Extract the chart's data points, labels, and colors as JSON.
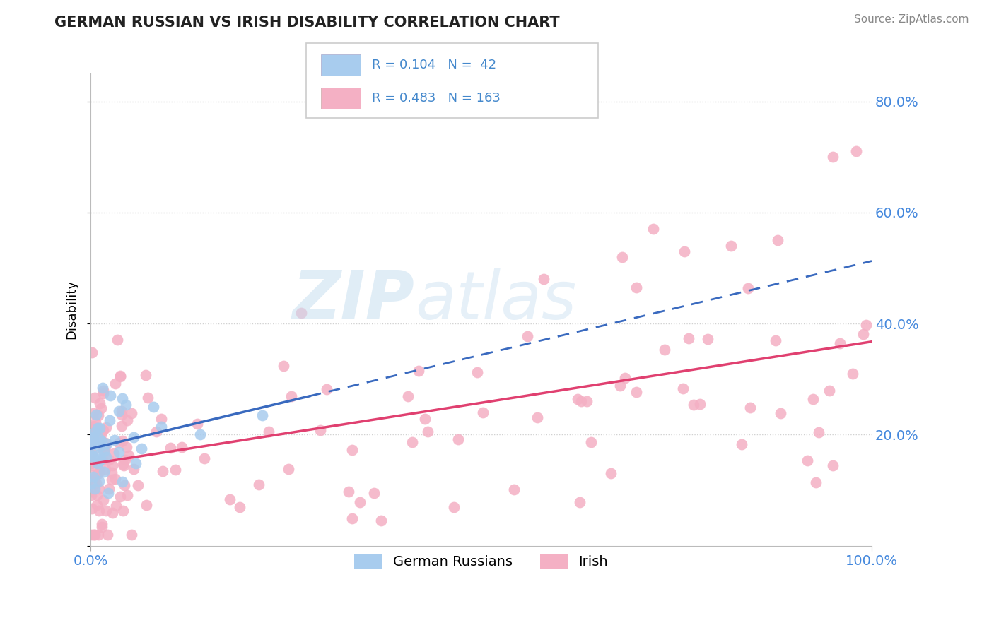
{
  "title": "GERMAN RUSSIAN VS IRISH DISABILITY CORRELATION CHART",
  "source_text": "Source: ZipAtlas.com",
  "ylabel": "Disability",
  "series": [
    {
      "label": "German Russians",
      "R": 0.104,
      "N": 42,
      "dot_color": "#a8ccee",
      "line_color": "#3a6abf",
      "line_style_solid_end": 0.28
    },
    {
      "label": "Irish",
      "R": 0.483,
      "N": 163,
      "dot_color": "#f4b0c4",
      "line_color": "#e04070",
      "line_style": "solid"
    }
  ],
  "xlim": [
    0.0,
    1.0
  ],
  "ylim": [
    0.0,
    0.85
  ],
  "yticks": [
    0.0,
    0.2,
    0.4,
    0.6,
    0.8
  ],
  "ytick_labels": [
    "",
    "20.0%",
    "40.0%",
    "60.0%",
    "80.0%"
  ],
  "axis_label_color": "#4488dd",
  "background_color": "#ffffff",
  "grid_color": "#cccccc",
  "title_color": "#222222",
  "source_color": "#888888",
  "legend_text_color": "#4488cc",
  "watermark_zip_color": "#c8dff0",
  "watermark_atlas_color": "#c8dff0"
}
